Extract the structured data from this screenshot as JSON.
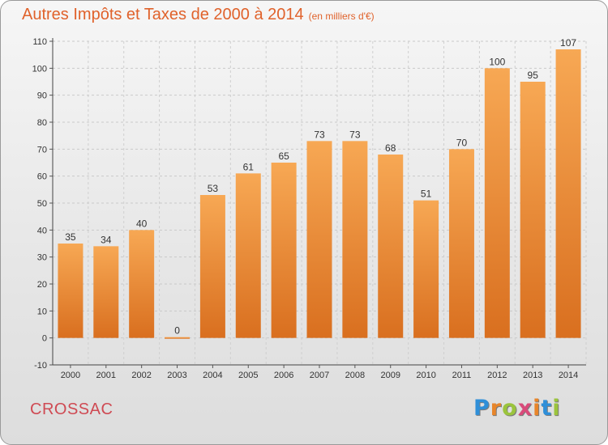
{
  "header": {
    "title": "Autres Impôts et Taxes de 2000 à 2014",
    "unit": "(en milliers d'€)"
  },
  "footer": {
    "place": "CROSSAC",
    "logo": "Proxiti",
    "logo_colors": [
      "#2f8fd8",
      "#e8852a",
      "#9bc43d",
      "#d94a7a",
      "#e8852a",
      "#2f8fd8",
      "#9bc43d"
    ]
  },
  "colors": {
    "bar_light": "#f7a854",
    "bar_dark": "#d96f1f",
    "title": "#e0622b",
    "place": "#cf4a53"
  },
  "chart_data": {
    "type": "bar",
    "title": "Autres Impôts et Taxes de 2000 à 2014",
    "subtitle": "(en milliers d'€)",
    "xlabel": "",
    "ylabel": "",
    "categories": [
      "2000",
      "2001",
      "2002",
      "2003",
      "2004",
      "2005",
      "2006",
      "2007",
      "2008",
      "2009",
      "2010",
      "2011",
      "2012",
      "2013",
      "2014"
    ],
    "values": [
      35,
      34,
      40,
      0,
      53,
      61,
      65,
      73,
      73,
      68,
      51,
      70,
      100,
      95,
      107
    ],
    "ylim": [
      -10,
      110
    ],
    "yticks": [
      -10,
      0,
      10,
      20,
      30,
      40,
      50,
      60,
      70,
      80,
      90,
      100,
      110
    ],
    "grid": true,
    "data_labels": true
  }
}
